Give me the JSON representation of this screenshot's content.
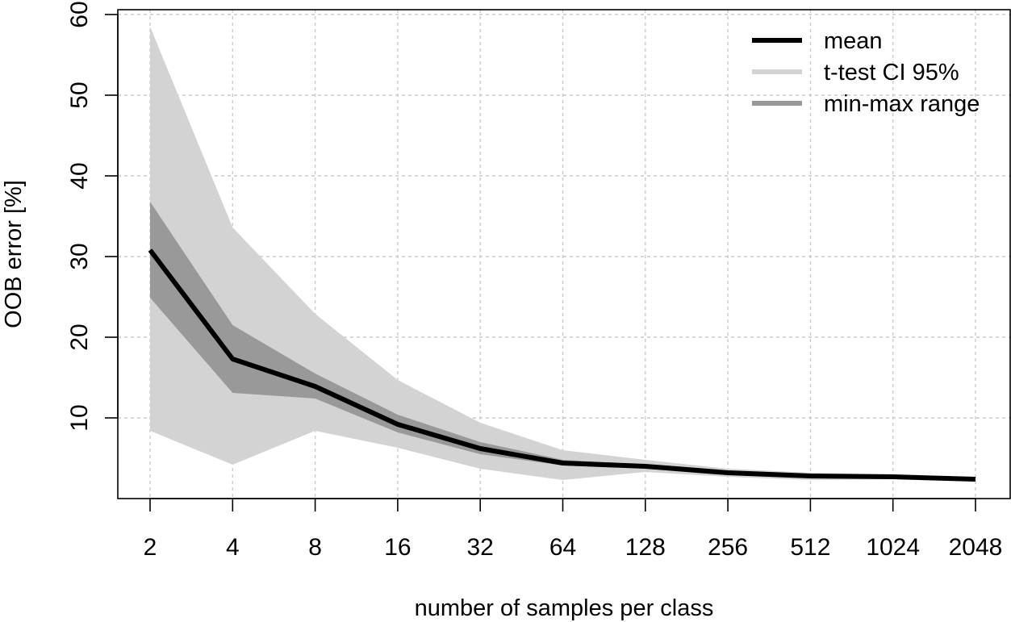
{
  "chart_data": {
    "type": "area",
    "title": "",
    "xlabel": "number of samples per class",
    "ylabel": "OOB error [%]",
    "x_scale": "log2",
    "x": [
      2,
      4,
      8,
      16,
      32,
      64,
      128,
      256,
      512,
      1024,
      2048
    ],
    "x_tick_labels": [
      "2",
      "4",
      "8",
      "16",
      "32",
      "64",
      "128",
      "256",
      "512",
      "1024",
      "2048"
    ],
    "y_ticks": [
      10,
      20,
      30,
      40,
      50,
      60
    ],
    "ylim": [
      0,
      60
    ],
    "grid": true,
    "legend_position": "top-right",
    "series": [
      {
        "name": "t-test CI 95%",
        "kind": "band",
        "color": "#d3d3d3",
        "lower": [
          8.4,
          4.2,
          8.4,
          6.3,
          3.7,
          2.3,
          3.3,
          2.7,
          2.3,
          2.4,
          2.4
        ],
        "upper": [
          58.5,
          33.6,
          22.9,
          14.7,
          9.4,
          6.0,
          4.8,
          3.7,
          3.2,
          3.0,
          2.5
        ]
      },
      {
        "name": "min-max range",
        "kind": "band",
        "color": "#999999",
        "lower": [
          24.9,
          13.1,
          12.4,
          8.2,
          5.5,
          4.1,
          3.7,
          3.0,
          2.6,
          2.7,
          2.4
        ],
        "upper": [
          36.8,
          21.5,
          15.5,
          10.4,
          7.0,
          4.8,
          4.2,
          3.4,
          3.0,
          2.8,
          2.5
        ]
      },
      {
        "name": "mean",
        "kind": "line",
        "color": "#000000",
        "values": [
          30.8,
          17.3,
          13.9,
          9.2,
          6.2,
          4.4,
          4.0,
          3.2,
          2.8,
          2.7,
          2.4
        ]
      }
    ]
  }
}
